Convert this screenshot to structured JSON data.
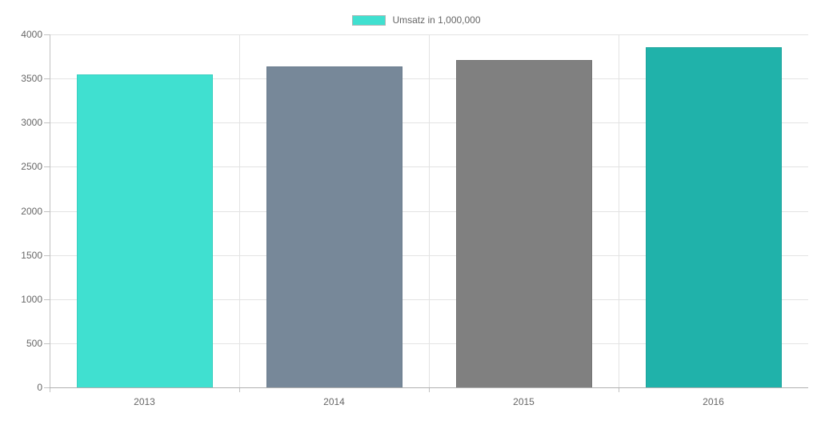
{
  "chart_data": {
    "type": "bar",
    "title": "",
    "legend": "Umsatz in 1,000,000",
    "legend_position": "top",
    "categories": [
      "2013",
      "2014",
      "2015",
      "2016"
    ],
    "values": [
      3550,
      3635,
      3710,
      3855
    ],
    "xlabel": "",
    "ylabel": "",
    "ylim": [
      0,
      4000
    ],
    "ytick_step": 500,
    "ytick_labels": [
      "0",
      "500",
      "1000",
      "1500",
      "2000",
      "2500",
      "3000",
      "3500",
      "4000"
    ],
    "grid": true,
    "bar_colors": [
      "#40E0D0",
      "#778899",
      "#808080",
      "#20B2AA"
    ],
    "bar_border_colors": [
      "#38cfc0",
      "#6b7d8e",
      "#747474",
      "#1da49d"
    ],
    "colors": {
      "background": "#ffffff",
      "gridline": "#e3e3e3",
      "axis": "#c1c1c1",
      "baseline": "#b0b0b0",
      "text": "#666666",
      "legend_swatch": "#40E0D0"
    }
  }
}
